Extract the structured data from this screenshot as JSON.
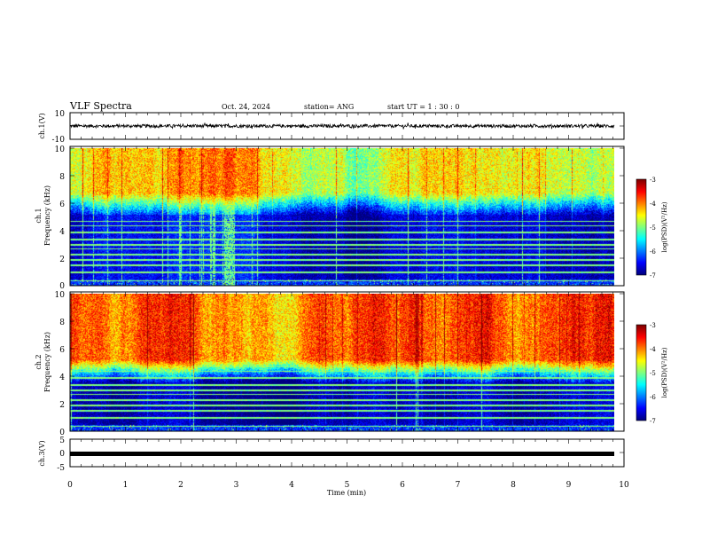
{
  "header": {
    "title": "VLF Spectra",
    "date": "Oct. 24, 2024",
    "station": "station= ANG",
    "start": "start  UT =   1 : 30 : 0"
  },
  "chart_data": [
    {
      "type": "line",
      "panel": "ch1-waveform",
      "ylabel": "ch.1(V)",
      "ylim": [
        -10,
        10
      ],
      "yticks": [
        "10",
        "-10"
      ],
      "xlim": [
        0,
        10
      ],
      "series": [
        {
          "level": 0,
          "noise_amplitude": 1.2
        }
      ]
    },
    {
      "type": "heatmap",
      "panel": "ch1-spectrogram",
      "ylabel_top": "ch.1",
      "ylabel": "Frequency (kHz)",
      "ylim": [
        0,
        10
      ],
      "yticks": [
        "0",
        "2",
        "4",
        "6",
        "8",
        "10"
      ],
      "xlim": [
        0,
        9.82
      ],
      "colorbar": {
        "label": "log(PSD)(V²/Hz)",
        "range": [
          -7,
          -3
        ],
        "ticks": [
          "-3",
          "-4",
          "-5",
          "-6",
          "-7"
        ]
      },
      "energy_cutoff_khz": 6.8,
      "top_band_level": -4.6
    },
    {
      "type": "heatmap",
      "panel": "ch2-spectrogram",
      "ylabel_top": "ch.2",
      "ylabel": "Frequency (kHz)",
      "ylim": [
        0,
        10
      ],
      "yticks": [
        "0",
        "2",
        "4",
        "6",
        "8",
        "10"
      ],
      "xlim": [
        0,
        9.82
      ],
      "colorbar": {
        "label": "log(PSD)(V²/Hz)",
        "range": [
          -7,
          -3
        ],
        "ticks": [
          "-3",
          "-4",
          "-5",
          "-6",
          "-7"
        ]
      },
      "energy_cutoff_khz": 5.2,
      "top_band_level": -3.7
    },
    {
      "type": "line",
      "panel": "ch3-waveform",
      "ylabel": "ch.3(V)",
      "ylim": [
        -5,
        5
      ],
      "yticks": [
        "5",
        "0",
        "-5"
      ],
      "xlim": [
        0,
        10
      ],
      "series": [
        {
          "level": -0.8,
          "noise_amplitude": 0.1
        }
      ]
    }
  ],
  "xaxis": {
    "label": "Time (min)",
    "ticks": [
      "0",
      "1",
      "2",
      "3",
      "4",
      "5",
      "6",
      "7",
      "8",
      "9",
      "10"
    ]
  }
}
